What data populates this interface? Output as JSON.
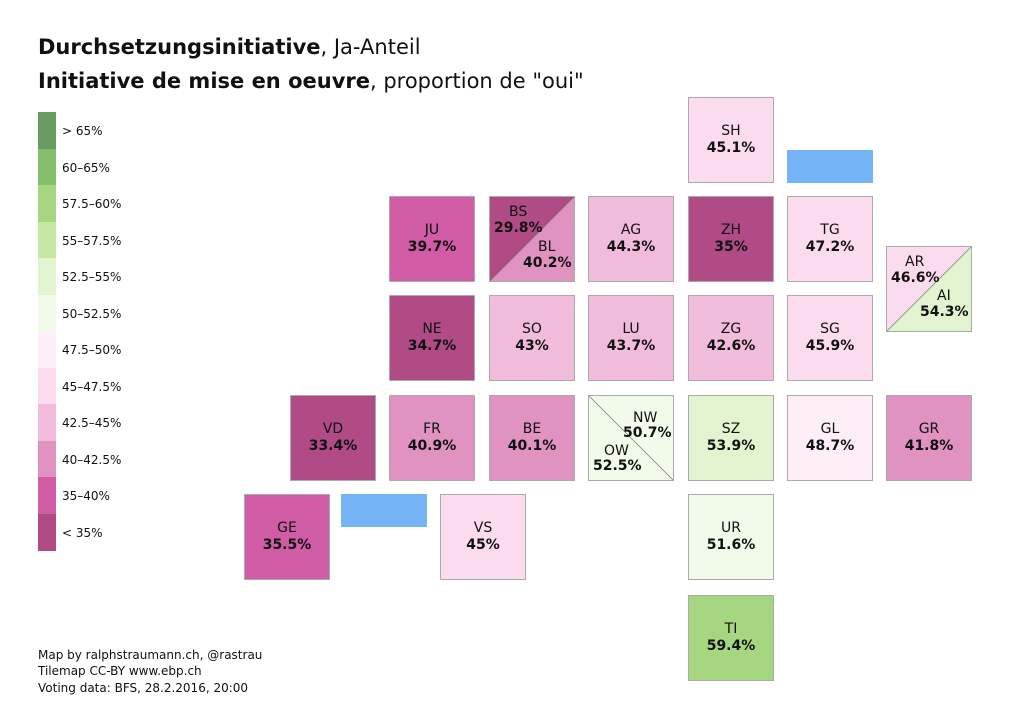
{
  "title": {
    "line1_bold": "Durchsetzungsinitiative",
    "line1_rest": ", Ja-Anteil",
    "line2_bold": "Initiative de mise en oeuvre",
    "line2_rest": ", proportion de \"oui\""
  },
  "legend": [
    {
      "label": "> 65%",
      "color": "#6a9b62"
    },
    {
      "label": "60–65%",
      "color": "#86bf6c"
    },
    {
      "label": "57.5–60%",
      "color": "#a6d67f"
    },
    {
      "label": "55–57.5%",
      "color": "#c6e8a4"
    },
    {
      "label": "52.5–55%",
      "color": "#e2f3cf"
    },
    {
      "label": "50–52.5%",
      "color": "#f1f9e8"
    },
    {
      "label": "47.5–50%",
      "color": "#fdeef7"
    },
    {
      "label": "45–47.5%",
      "color": "#fbdcee"
    },
    {
      "label": "42.5–45%",
      "color": "#f1bcdb"
    },
    {
      "label": "40–42.5%",
      "color": "#e092c1"
    },
    {
      "label": "35–40%",
      "color": "#d05ca5"
    },
    {
      "label": "< 35%",
      "color": "#b04b85"
    }
  ],
  "cantons": {
    "SH": {
      "code": "SH",
      "value": "45.1%",
      "color": "#fbdcee"
    },
    "JU": {
      "code": "JU",
      "value": "39.7%",
      "color": "#d05ca5"
    },
    "AG": {
      "code": "AG",
      "value": "44.3%",
      "color": "#f1bcdb"
    },
    "ZH": {
      "code": "ZH",
      "value": "35%",
      "color": "#b04b85"
    },
    "TG": {
      "code": "TG",
      "value": "47.2%",
      "color": "#fbdcee"
    },
    "NE": {
      "code": "NE",
      "value": "34.7%",
      "color": "#b04b85"
    },
    "SO": {
      "code": "SO",
      "value": "43%",
      "color": "#f1bcdb"
    },
    "LU": {
      "code": "LU",
      "value": "43.7%",
      "color": "#f1bcdb"
    },
    "ZG": {
      "code": "ZG",
      "value": "42.6%",
      "color": "#f1bcdb"
    },
    "SG": {
      "code": "SG",
      "value": "45.9%",
      "color": "#fbdcee"
    },
    "VD": {
      "code": "VD",
      "value": "33.4%",
      "color": "#b04b85"
    },
    "FR": {
      "code": "FR",
      "value": "40.9%",
      "color": "#e092c1"
    },
    "BE": {
      "code": "BE",
      "value": "40.1%",
      "color": "#e092c1"
    },
    "SZ": {
      "code": "SZ",
      "value": "53.9%",
      "color": "#e2f3cf"
    },
    "GL": {
      "code": "GL",
      "value": "48.7%",
      "color": "#fdeef7"
    },
    "GR": {
      "code": "GR",
      "value": "41.8%",
      "color": "#e092c1"
    },
    "GE": {
      "code": "GE",
      "value": "35.5%",
      "color": "#d05ca5"
    },
    "VS": {
      "code": "VS",
      "value": "45%",
      "color": "#fbdcee"
    },
    "UR": {
      "code": "UR",
      "value": "51.6%",
      "color": "#f1f9e8"
    },
    "TI": {
      "code": "TI",
      "value": "59.4%",
      "color": "#a6d67f"
    }
  },
  "split_cantons": {
    "BS_BL": {
      "a": {
        "code": "BS",
        "value": "29.8%",
        "color": "#b04b85"
      },
      "b": {
        "code": "BL",
        "value": "40.2%",
        "color": "#e092c1"
      }
    },
    "AR_AI": {
      "a": {
        "code": "AR",
        "value": "46.6%",
        "color": "#fbdcee"
      },
      "b": {
        "code": "AI",
        "value": "54.3%",
        "color": "#e2f3cf"
      }
    },
    "NW_OW": {
      "a": {
        "code": "NW",
        "value": "50.7%",
        "color": "#f1f9e8"
      },
      "b": {
        "code": "OW",
        "value": "52.5%",
        "color": "#f1f9e8"
      }
    }
  },
  "lake_color": "#74b3f5",
  "credits": [
    "Map by ralphstraumann.ch, @rastrau",
    "Tilemap CC-BY www.ebp.ch",
    "Voting data: BFS, 28.2.2016, 20:00"
  ]
}
